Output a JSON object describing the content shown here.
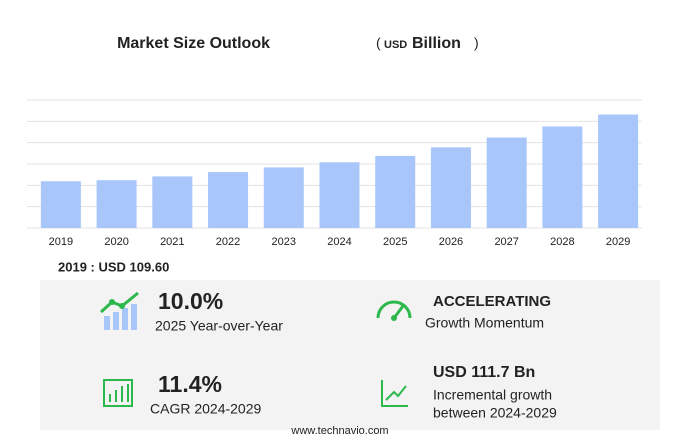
{
  "chart_data": {
    "type": "bar",
    "title": "Market Size Outlook",
    "subtitle_parts": [
      "(",
      "USD",
      "Billion",
      ")"
    ],
    "categories": [
      "2019",
      "2020",
      "2021",
      "2022",
      "2023",
      "2024",
      "2025",
      "2026",
      "2027",
      "2028",
      "2029"
    ],
    "values": [
      109.6,
      112,
      121,
      131,
      142,
      154,
      169,
      189,
      212,
      238,
      266
    ],
    "color": "#a8c6fa",
    "ylim": [
      0,
      300
    ],
    "yticks": [
      0,
      50,
      100,
      150,
      200,
      250,
      300
    ],
    "grid": true
  },
  "base_year": "2019 : USD  109.60",
  "cards": [
    {
      "value": "10.0%",
      "label": "2025 Year-over-Year"
    },
    {
      "value": "ACCELERATING",
      "label": "Growth Momentum"
    },
    {
      "value": "11.4%",
      "label": "CAGR 2024-2029"
    },
    {
      "value": "USD 111.7 Bn",
      "label": "Incremental growth",
      "label2": "between 2024-2029"
    }
  ],
  "footer": "www.technavio.com"
}
